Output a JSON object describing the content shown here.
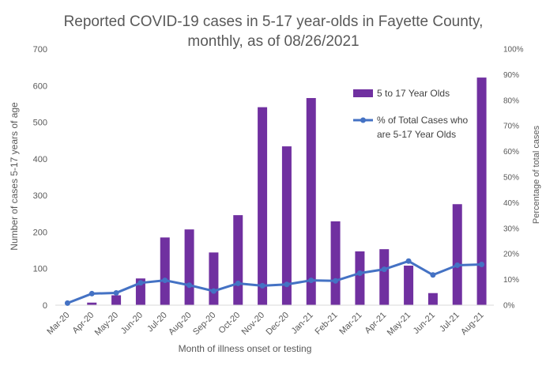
{
  "chart_data": {
    "type": "bar",
    "title_lines": [
      "Reported COVID-19 cases in 5-17 year-olds in Fayette County,",
      "monthly, as of 08/26/2021"
    ],
    "xlabel": "Month of illness onset or testing",
    "ylabel": "Number of cases 5-17 years of age",
    "y2label": "Percentage of total cases",
    "categories": [
      "Mar-20",
      "Apr-20",
      "May-20",
      "Jun-20",
      "Jul-20",
      "Aug-20",
      "Sep-20",
      "Oct-20",
      "Nov-20",
      "Dec-20",
      "Jan-21",
      "Feb-21",
      "Mar-21",
      "Apr-21",
      "May-21",
      "Jun-21",
      "Jul-21",
      "Aug-21"
    ],
    "ylim": [
      0,
      700
    ],
    "yticks": [
      "0",
      "100",
      "200",
      "300",
      "400",
      "500",
      "600",
      "700"
    ],
    "y2lim": [
      0,
      100
    ],
    "y2ticks": [
      "0%",
      "10%",
      "20%",
      "30%",
      "40%",
      "50%",
      "60%",
      "70%",
      "80%",
      "90%",
      "100%"
    ],
    "grid": false,
    "legend_position": "right",
    "series": [
      {
        "name": "5 to 17 Year Olds",
        "type": "bar",
        "axis": "left",
        "color": "#7030A0",
        "values": [
          1,
          7,
          27,
          73,
          185,
          207,
          144,
          246,
          541,
          434,
          566,
          229,
          147,
          153,
          108,
          33,
          276,
          622
        ]
      },
      {
        "name_lines": [
          "% of Total Cases who",
          "are 5-17 Year Olds"
        ],
        "type": "line",
        "axis": "right",
        "color": "#4472C4",
        "values": [
          0.8,
          4.5,
          4.8,
          8.7,
          9.7,
          7.8,
          5.5,
          8.5,
          7.6,
          8.1,
          9.7,
          9.5,
          12.5,
          14,
          17.2,
          11.8,
          15.6,
          15.9
        ]
      }
    ]
  }
}
